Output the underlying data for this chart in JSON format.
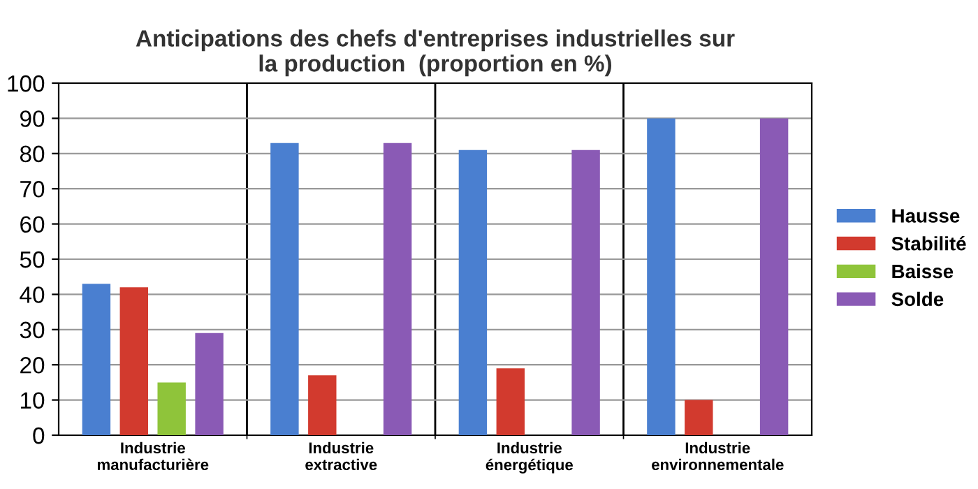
{
  "chart_data": {
    "type": "bar",
    "title": "Anticipations des chefs d'entreprises industrielles sur\nla production  (proportion en %)",
    "categories": [
      "Industrie\nmanufacturière",
      "Industrie\nextractive",
      "Industrie\nénergétique",
      "Industrie\nenvironnementale"
    ],
    "series": [
      {
        "name": "Hausse",
        "color": "#4a7fd0",
        "values": [
          43,
          83,
          81,
          90
        ]
      },
      {
        "name": "Stabilité",
        "color": "#d23a2e",
        "values": [
          42,
          17,
          19,
          10
        ]
      },
      {
        "name": "Baisse",
        "color": "#8fc43a",
        "values": [
          15,
          0,
          0,
          0
        ]
      },
      {
        "name": "Solde",
        "color": "#8a5ab5",
        "values": [
          29,
          83,
          81,
          90
        ]
      }
    ],
    "ylim": [
      0,
      100
    ],
    "yticks": [
      0,
      10,
      20,
      30,
      40,
      50,
      60,
      70,
      80,
      90,
      100
    ],
    "grid": true,
    "legend": "right"
  }
}
